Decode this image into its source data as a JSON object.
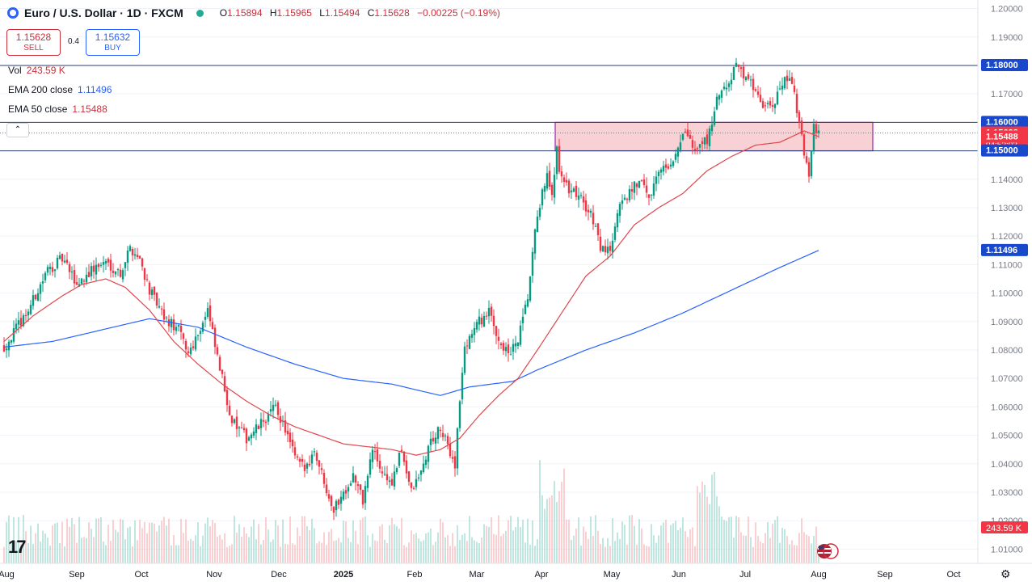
{
  "header": {
    "symbol": "Euro / U.S. Dollar · 1D · FXCM",
    "open_label": "O",
    "open": "1.15894",
    "high_label": "H",
    "high": "1.15965",
    "low_label": "L",
    "low": "1.15494",
    "close_label": "C",
    "close": "1.15628",
    "change": "−0.00225 (−0.19%)"
  },
  "trade": {
    "sell_price": "1.15628",
    "sell_label": "SELL",
    "spread": "0.4",
    "buy_price": "1.15632",
    "buy_label": "BUY"
  },
  "indicators": {
    "vol_label": "Vol",
    "vol_value": "243.59 K",
    "ema200_label": "EMA 200 close",
    "ema200_value": "1.11496",
    "ema50_label": "EMA 50 close",
    "ema50_value": "1.15488"
  },
  "colors": {
    "up": "#089981",
    "down": "#f23645",
    "ema200": "#2962ff",
    "ema50": "#e0474c",
    "zone_fill": "#f7c9cd",
    "zone_border": "#9c27b0"
  },
  "chart_data": {
    "type": "candlestick",
    "instrument": "EUR/USD",
    "timeframe": "1D",
    "ylim": [
      1.005,
      1.203
    ],
    "y_ticks": [
      "1.20000",
      "1.19000",
      "1.18000",
      "1.17000",
      "1.16000",
      "1.15000",
      "1.14000",
      "1.13000",
      "1.12000",
      "1.11000",
      "1.10000",
      "1.09000",
      "1.08000",
      "1.07000",
      "1.06000",
      "1.05000",
      "1.04000",
      "1.03000",
      "1.02000",
      "1.01000"
    ],
    "x_ticks": [
      "Aug",
      "Sep",
      "Oct",
      "Nov",
      "Dec",
      "2025",
      "Feb",
      "Mar",
      "Apr",
      "May",
      "Jun",
      "Jul",
      "Aug",
      "Sep",
      "Oct"
    ],
    "horizontal_levels": [
      1.18,
      1.16,
      1.15
    ],
    "zone": {
      "from": 1.15,
      "to": 1.16
    },
    "price_tags": [
      {
        "value": 1.18,
        "text": "1.18000",
        "kind": "level"
      },
      {
        "value": 1.16,
        "text": "1.16000",
        "kind": "level"
      },
      {
        "value": 1.15628,
        "text": "1.15628",
        "sub": "04:52:03",
        "kind": "price"
      },
      {
        "value": 1.15488,
        "text": "1.15488",
        "kind": "ema50"
      },
      {
        "value": 1.15,
        "text": "1.15000",
        "kind": "level"
      },
      {
        "value": 1.11496,
        "text": "1.11496",
        "kind": "ema200"
      }
    ],
    "volume_tag": "243.59 K",
    "close_keypoints": [
      [
        0,
        1.081
      ],
      [
        10,
        1.094
      ],
      [
        18,
        1.108
      ],
      [
        24,
        1.112
      ],
      [
        30,
        1.103
      ],
      [
        36,
        1.108
      ],
      [
        42,
        1.111
      ],
      [
        48,
        1.107
      ],
      [
        52,
        1.116
      ],
      [
        56,
        1.112
      ],
      [
        60,
        1.101
      ],
      [
        66,
        1.091
      ],
      [
        72,
        1.087
      ],
      [
        76,
        1.079
      ],
      [
        80,
        1.086
      ],
      [
        84,
        1.094
      ],
      [
        88,
        1.077
      ],
      [
        94,
        1.055
      ],
      [
        100,
        1.049
      ],
      [
        104,
        1.052
      ],
      [
        108,
        1.056
      ],
      [
        112,
        1.06
      ],
      [
        116,
        1.052
      ],
      [
        120,
        1.042
      ],
      [
        124,
        1.038
      ],
      [
        128,
        1.045
      ],
      [
        132,
        1.034
      ],
      [
        136,
        1.024
      ],
      [
        140,
        1.03
      ],
      [
        144,
        1.036
      ],
      [
        148,
        1.027
      ],
      [
        152,
        1.045
      ],
      [
        156,
        1.037
      ],
      [
        160,
        1.033
      ],
      [
        164,
        1.045
      ],
      [
        168,
        1.03
      ],
      [
        172,
        1.037
      ],
      [
        176,
        1.048
      ],
      [
        180,
        1.052
      ],
      [
        184,
        1.044
      ],
      [
        186,
        1.04
      ],
      [
        188,
        1.063
      ],
      [
        190,
        1.08
      ],
      [
        192,
        1.085
      ],
      [
        196,
        1.09
      ],
      [
        200,
        1.093
      ],
      [
        204,
        1.084
      ],
      [
        208,
        1.078
      ],
      [
        212,
        1.083
      ],
      [
        216,
        1.098
      ],
      [
        220,
        1.128
      ],
      [
        224,
        1.141
      ],
      [
        226,
        1.134
      ],
      [
        228,
        1.15
      ],
      [
        230,
        1.139
      ],
      [
        234,
        1.136
      ],
      [
        238,
        1.133
      ],
      [
        242,
        1.128
      ],
      [
        246,
        1.116
      ],
      [
        250,
        1.115
      ],
      [
        254,
        1.13
      ],
      [
        258,
        1.136
      ],
      [
        262,
        1.14
      ],
      [
        266,
        1.134
      ],
      [
        270,
        1.144
      ],
      [
        274,
        1.144
      ],
      [
        278,
        1.152
      ],
      [
        282,
        1.156
      ],
      [
        286,
        1.15
      ],
      [
        290,
        1.154
      ],
      [
        294,
        1.167
      ],
      [
        298,
        1.172
      ],
      [
        302,
        1.18
      ],
      [
        306,
        1.176
      ],
      [
        310,
        1.171
      ],
      [
        314,
        1.165
      ],
      [
        318,
        1.167
      ],
      [
        322,
        1.177
      ],
      [
        326,
        1.17
      ],
      [
        328,
        1.16
      ],
      [
        330,
        1.148
      ],
      [
        332,
        1.142
      ],
      [
        334,
        1.158
      ],
      [
        336,
        1.156
      ]
    ],
    "ema50_keypoints": [
      [
        0,
        1.083
      ],
      [
        12,
        1.092
      ],
      [
        24,
        1.099
      ],
      [
        32,
        1.103
      ],
      [
        42,
        1.105
      ],
      [
        50,
        1.102
      ],
      [
        60,
        1.094
      ],
      [
        70,
        1.083
      ],
      [
        80,
        1.075
      ],
      [
        90,
        1.068
      ],
      [
        100,
        1.062
      ],
      [
        110,
        1.057
      ],
      [
        120,
        1.053
      ],
      [
        130,
        1.05
      ],
      [
        140,
        1.047
      ],
      [
        150,
        1.046
      ],
      [
        160,
        1.045
      ],
      [
        170,
        1.043
      ],
      [
        180,
        1.045
      ],
      [
        188,
        1.049
      ],
      [
        196,
        1.057
      ],
      [
        204,
        1.064
      ],
      [
        212,
        1.07
      ],
      [
        220,
        1.08
      ],
      [
        230,
        1.093
      ],
      [
        240,
        1.106
      ],
      [
        250,
        1.113
      ],
      [
        260,
        1.124
      ],
      [
        270,
        1.13
      ],
      [
        280,
        1.135
      ],
      [
        290,
        1.143
      ],
      [
        300,
        1.148
      ],
      [
        310,
        1.152
      ],
      [
        320,
        1.153
      ],
      [
        330,
        1.157
      ],
      [
        336,
        1.155
      ]
    ],
    "ema200_keypoints": [
      [
        0,
        1.081
      ],
      [
        20,
        1.083
      ],
      [
        40,
        1.087
      ],
      [
        60,
        1.091
      ],
      [
        80,
        1.088
      ],
      [
        100,
        1.081
      ],
      [
        120,
        1.075
      ],
      [
        140,
        1.07
      ],
      [
        160,
        1.068
      ],
      [
        180,
        1.064
      ],
      [
        192,
        1.067
      ],
      [
        210,
        1.069
      ],
      [
        220,
        1.073
      ],
      [
        240,
        1.08
      ],
      [
        260,
        1.086
      ],
      [
        280,
        1.093
      ],
      [
        300,
        1.101
      ],
      [
        320,
        1.109
      ],
      [
        336,
        1.115
      ]
    ]
  }
}
